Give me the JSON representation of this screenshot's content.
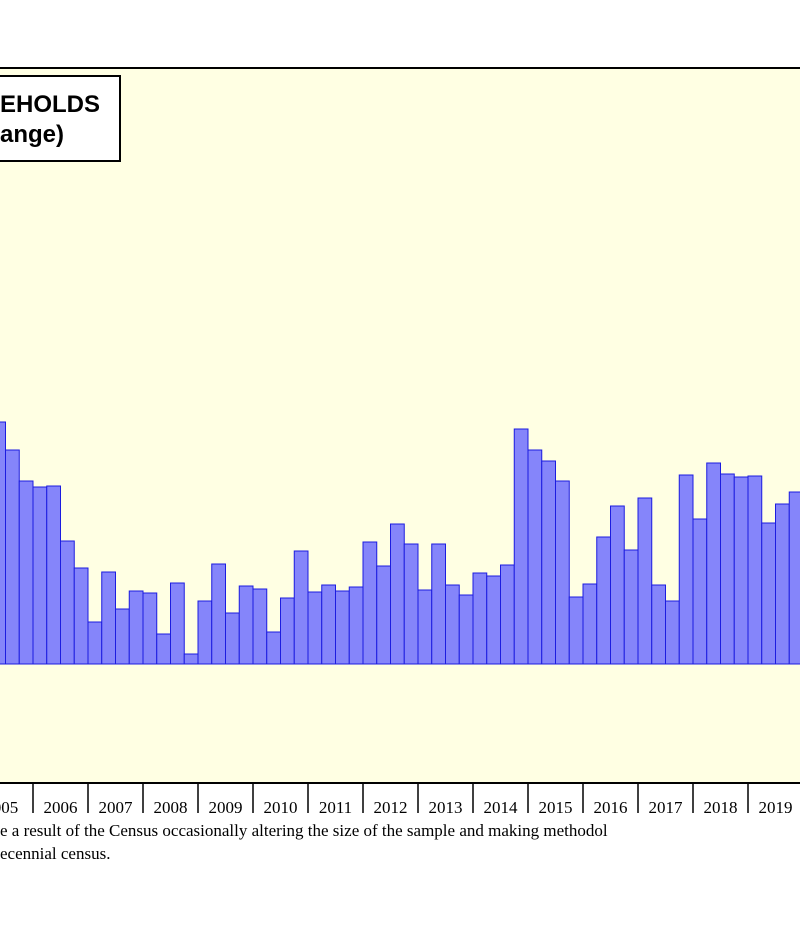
{
  "chart_data": {
    "type": "bar",
    "title_lines": [
      "EHOLDS",
      "ange)"
    ],
    "categories": [
      "005",
      "2006",
      "2007",
      "2008",
      "2009",
      "2010",
      "2011",
      "2012",
      "2013",
      "2014",
      "2015",
      "2016",
      "2017",
      "2018",
      "2019"
    ],
    "values": [
      [
        null,
        242,
        214,
        183
      ],
      [
        177,
        178,
        123,
        96
      ],
      [
        42,
        92,
        55,
        73
      ],
      [
        71,
        30,
        81,
        10
      ],
      [
        63,
        100,
        51,
        78
      ],
      [
        75,
        32,
        66,
        113
      ],
      [
        72,
        79,
        73,
        77
      ],
      [
        122,
        98,
        140,
        120
      ],
      [
        74,
        120,
        79,
        69
      ],
      [
        91,
        88,
        99,
        235
      ],
      [
        214,
        203,
        183,
        67
      ],
      [
        80,
        127,
        158,
        114
      ],
      [
        166,
        79,
        63,
        189
      ],
      [
        145,
        201,
        190,
        187
      ],
      [
        188,
        141,
        160,
        172
      ]
    ],
    "color": "#8585fa",
    "ylim": [
      -119,
      596
    ],
    "footnote": [
      "e a result of the Census occasionally altering the size of the sample and making methodol",
      "ecennial census."
    ]
  }
}
